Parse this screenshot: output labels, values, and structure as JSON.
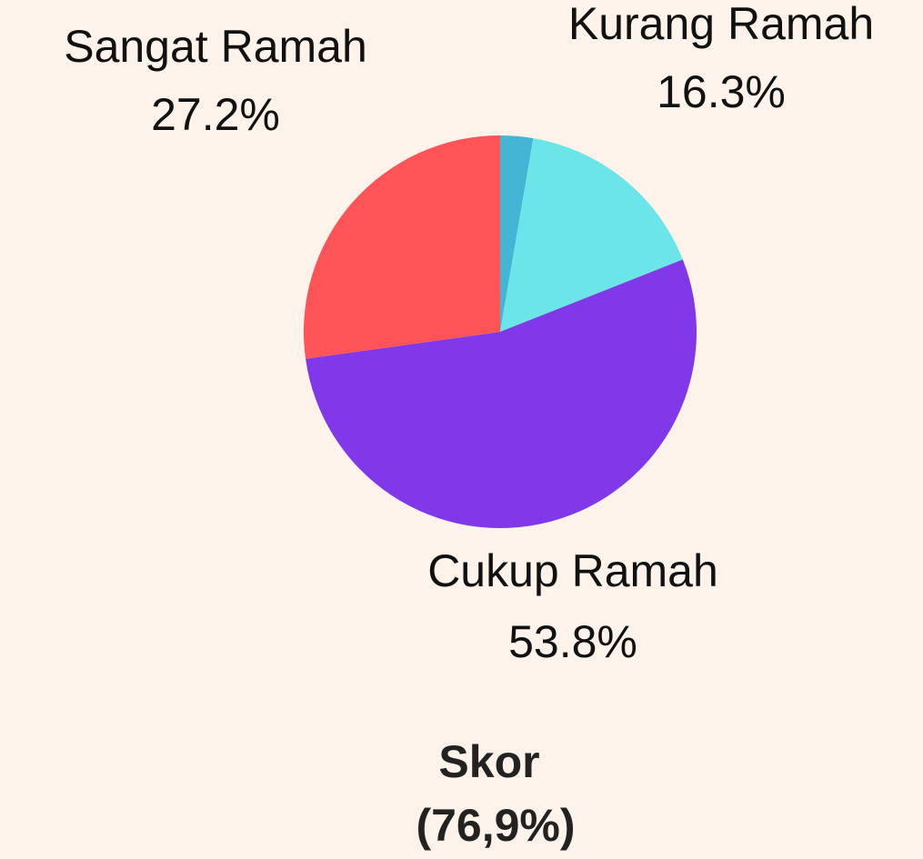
{
  "chart_data": {
    "type": "pie",
    "categories": [
      null,
      "Kurang Ramah",
      "Cukup Ramah",
      "Sangat Ramah"
    ],
    "values": [
      2.7,
      16.3,
      53.8,
      27.2
    ],
    "value_labels": [
      null,
      "16.3%",
      "53.8%",
      "27.2%"
    ],
    "colors": [
      "#45b5d6",
      "#6ce5e8",
      "#8038e8",
      "#ff5457"
    ],
    "score_title": "Skor",
    "score_value": "(76,9%)"
  }
}
